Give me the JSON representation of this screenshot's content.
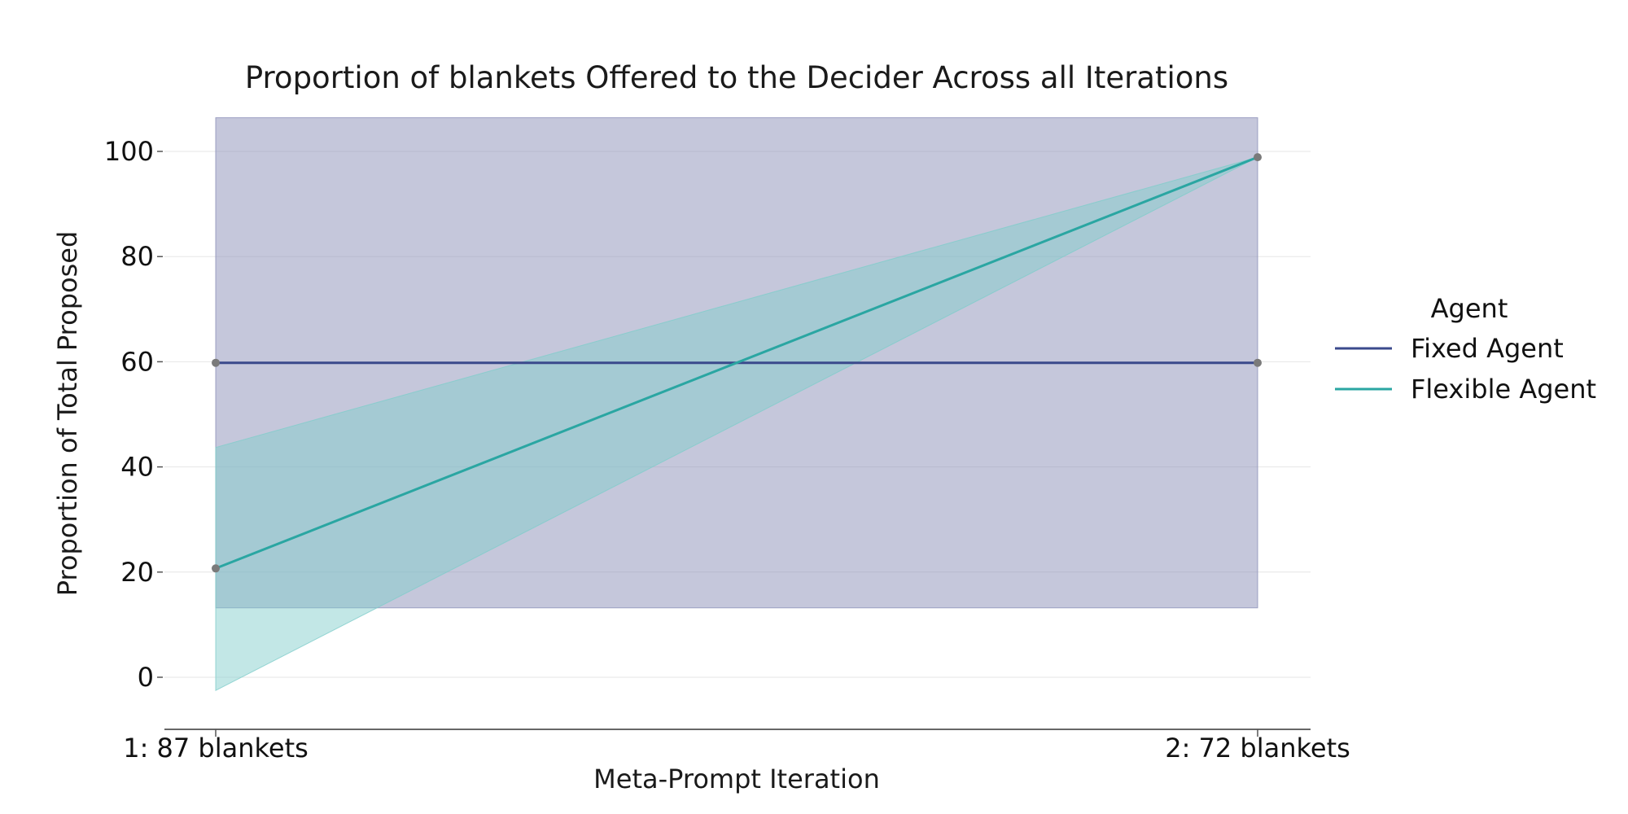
{
  "chart_data": {
    "type": "line",
    "title": "Proportion of blankets Offered to the Decider Across all Iterations",
    "xlabel": "Meta-Prompt Iteration",
    "ylabel": "Proportion of Total Proposed",
    "categories": [
      "1: 87 blankets",
      "2: 72 blankets"
    ],
    "ylim": [
      -10,
      107
    ],
    "yticks": [
      0,
      20,
      40,
      60,
      80,
      100
    ],
    "grid": true,
    "legend": {
      "title": "Agent",
      "position": "right"
    },
    "series": [
      {
        "name": "Fixed Agent",
        "color": "#3b4a8c",
        "band_color": "#8b8fb8",
        "values": [
          59.8,
          59.8
        ],
        "ci_low": [
          13.2,
          13.2
        ],
        "ci_high": [
          106.4,
          106.4
        ]
      },
      {
        "name": "Flexible Agent",
        "color": "#2aa6a2",
        "band_color": "#7fcdcb",
        "values": [
          20.7,
          98.9
        ],
        "ci_low": [
          -2.5,
          98.9
        ],
        "ci_high": [
          43.7,
          98.9
        ]
      }
    ],
    "marker_color": "#7a7a7a"
  }
}
